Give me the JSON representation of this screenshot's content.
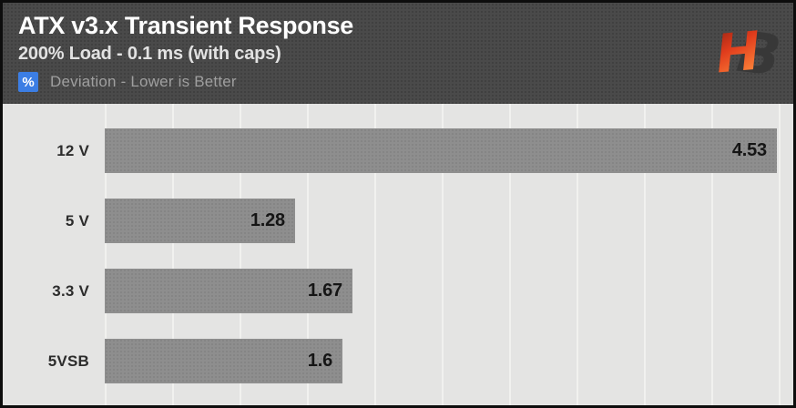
{
  "header": {
    "title": "ATX v3.x Transient Response",
    "subtitle": "200% Load - 0.1 ms (with caps)",
    "legend": {
      "unit_symbol": "%",
      "label": "Deviation - Lower is Better"
    },
    "logo": {
      "letter_h": "H",
      "letter_b": "B"
    }
  },
  "colors": {
    "frame_border": "#0d0d0d",
    "header_bg": "#4a4a4a",
    "chart_bg": "#e4e4e3",
    "gridline": "#f1f1ef",
    "bar_fill": "#8e8e8e",
    "unit_badge_bg": "#3c7ee4",
    "title_text": "#ffffff",
    "legend_text": "#9f9f9f",
    "category_text": "#2c2c2c",
    "value_text": "#151515",
    "logo_gradient_top": "#8f1f12",
    "logo_gradient_bottom": "#ff8a3c",
    "logo_dark": "#383838"
  },
  "chart_data": {
    "type": "bar",
    "orientation": "horizontal",
    "title": "ATX v3.x Transient Response",
    "subtitle": "200% Load - 0.1 ms (with caps)",
    "xlabel": "% Deviation",
    "note": "Lower is Better",
    "categories": [
      "12 V",
      "5 V",
      "3.3 V",
      "5VSB"
    ],
    "values": [
      4.53,
      1.28,
      1.67,
      1.6
    ],
    "value_labels": [
      "4.53",
      "1.28",
      "1.67",
      "1.6"
    ],
    "xlim": [
      0,
      4.64
    ],
    "grid": true,
    "gridline_count": 11,
    "legend_position": "top-left"
  }
}
